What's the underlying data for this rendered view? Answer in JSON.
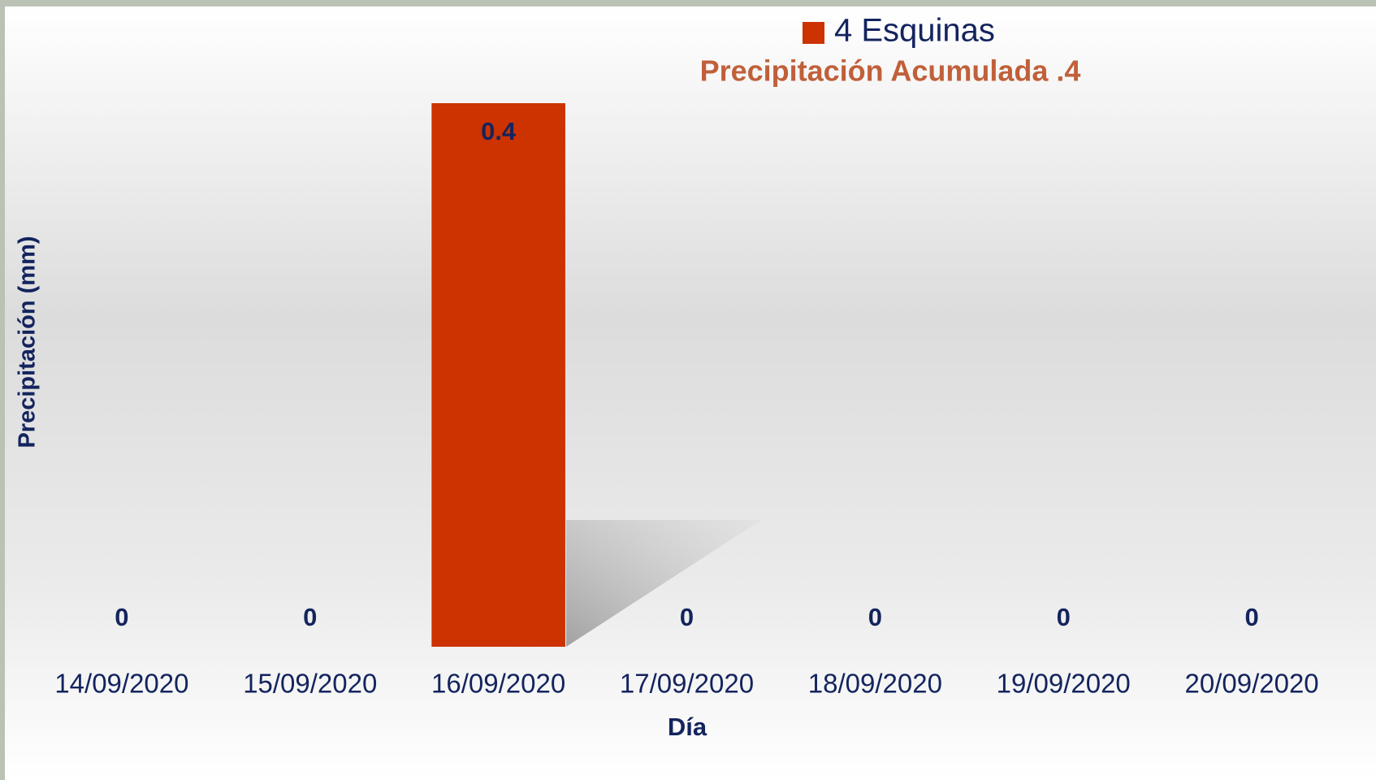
{
  "chart_data": {
    "type": "bar",
    "legend_label": "4 Esquinas",
    "subtitle": "Precipitación Acumulada .4",
    "x_label": "Día",
    "y_label": "Precipitación (mm)",
    "categories": [
      "14/09/2020",
      "15/09/2020",
      "16/09/2020",
      "17/09/2020",
      "18/09/2020",
      "19/09/2020",
      "20/09/2020"
    ],
    "values": [
      0,
      0,
      0.4,
      0,
      0,
      0,
      0
    ],
    "color": "#cc3300",
    "ylim": [
      0,
      0.4
    ]
  }
}
